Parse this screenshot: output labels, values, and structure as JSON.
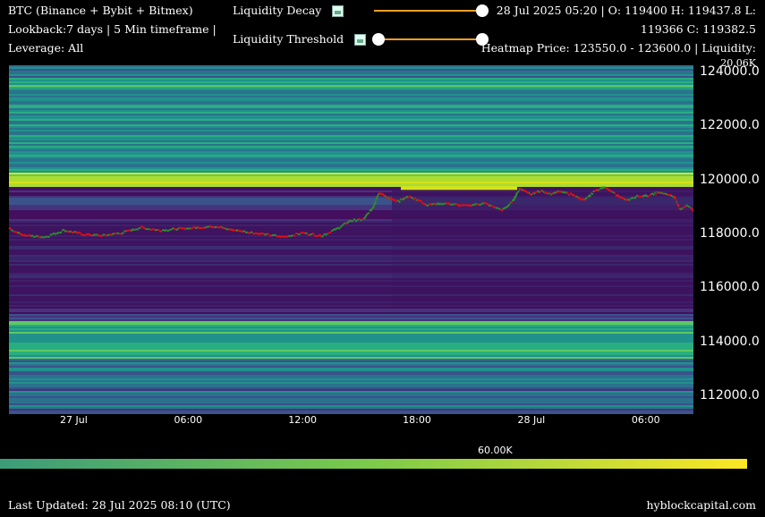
{
  "header": {
    "line1": "BTC (Binance + Bybit + Bitmex)",
    "line2": "Lookback:7 days | 5 Min timeframe |",
    "line3": "Leverage: All",
    "ohlc_line1": "28 Jul 2025 05:20 | O: 119400 H: 119437.8 L:",
    "ohlc_line2": "119366 C: 119382.5",
    "heatmap_line": "Heatmap Price: 123550.0 - 123600.0 | Liquidity:",
    "liquidity_value": "20.06K"
  },
  "controls": {
    "decay_label": "Liquidity Decay",
    "decay_value": 1.0,
    "threshold_label": "Liquidity Threshold",
    "threshold_low": 0.0,
    "threshold_high": 1.0,
    "slider_color": "#f0a020"
  },
  "colorbar": {
    "label": "60.00K",
    "colors": [
      "#3b9c7a",
      "#7ccb4a",
      "#fde725"
    ]
  },
  "footer": {
    "updated": "Last Updated: 28 Jul 2025 08:10 (UTC)",
    "brand": "hyblockcapital.com"
  },
  "chart_data": {
    "type": "heatmap",
    "title": "",
    "yticks": [
      "124000.0",
      "122000.0",
      "120000.0",
      "118000.0",
      "116000.0",
      "114000.0",
      "112000.0"
    ],
    "ytick_values": [
      124000,
      122000,
      120000,
      118000,
      116000,
      114000,
      112000
    ],
    "ylim": [
      111400,
      124400
    ],
    "xticks": [
      "27 Jul",
      "06:00",
      "12:00",
      "18:00",
      "28 Jul",
      "06:00"
    ],
    "xtick_hours": [
      0,
      6,
      12,
      18,
      24,
      30
    ],
    "xlim_hours": [
      -3.4,
      32.5
    ],
    "price_colors": {
      "up": "#2e8b2e",
      "down": "#e01010"
    },
    "price_series": [
      {
        "t": -3.4,
        "p": 118200
      },
      {
        "t": -2.5,
        "p": 117950
      },
      {
        "t": -1.5,
        "p": 117900
      },
      {
        "t": -0.5,
        "p": 118150
      },
      {
        "t": 0.5,
        "p": 118000
      },
      {
        "t": 1.5,
        "p": 117950
      },
      {
        "t": 2.5,
        "p": 118050
      },
      {
        "t": 3.5,
        "p": 118250
      },
      {
        "t": 4.5,
        "p": 118150
      },
      {
        "t": 5.5,
        "p": 118200
      },
      {
        "t": 6.5,
        "p": 118250
      },
      {
        "t": 7.5,
        "p": 118300
      },
      {
        "t": 8.0,
        "p": 118200
      },
      {
        "t": 9.0,
        "p": 118100
      },
      {
        "t": 10.0,
        "p": 118000
      },
      {
        "t": 11.0,
        "p": 117900
      },
      {
        "t": 12.0,
        "p": 118050
      },
      {
        "t": 13.0,
        "p": 117950
      },
      {
        "t": 13.8,
        "p": 118200
      },
      {
        "t": 14.5,
        "p": 118500
      },
      {
        "t": 15.2,
        "p": 118550
      },
      {
        "t": 15.7,
        "p": 119000
      },
      {
        "t": 16.0,
        "p": 119550
      },
      {
        "t": 16.5,
        "p": 119350
      },
      {
        "t": 17.0,
        "p": 119200
      },
      {
        "t": 17.5,
        "p": 119400
      },
      {
        "t": 18.0,
        "p": 119300
      },
      {
        "t": 18.5,
        "p": 119100
      },
      {
        "t": 19.5,
        "p": 119150
      },
      {
        "t": 20.5,
        "p": 119050
      },
      {
        "t": 21.5,
        "p": 119150
      },
      {
        "t": 22.5,
        "p": 118900
      },
      {
        "t": 23.0,
        "p": 119200
      },
      {
        "t": 23.4,
        "p": 119700
      },
      {
        "t": 24.0,
        "p": 119500
      },
      {
        "t": 24.5,
        "p": 119600
      },
      {
        "t": 25.0,
        "p": 119500
      },
      {
        "t": 25.5,
        "p": 119600
      },
      {
        "t": 26.2,
        "p": 119450
      },
      {
        "t": 26.8,
        "p": 119250
      },
      {
        "t": 27.3,
        "p": 119600
      },
      {
        "t": 27.8,
        "p": 119750
      },
      {
        "t": 28.5,
        "p": 119450
      },
      {
        "t": 29.0,
        "p": 119250
      },
      {
        "t": 29.5,
        "p": 119400
      },
      {
        "t": 30.2,
        "p": 119450
      },
      {
        "t": 30.7,
        "p": 119550
      },
      {
        "t": 31.0,
        "p": 119500
      },
      {
        "t": 31.5,
        "p": 119400
      },
      {
        "t": 31.8,
        "p": 118950
      },
      {
        "t": 32.2,
        "p": 119050
      },
      {
        "t": 32.5,
        "p": 118900
      }
    ]
  }
}
